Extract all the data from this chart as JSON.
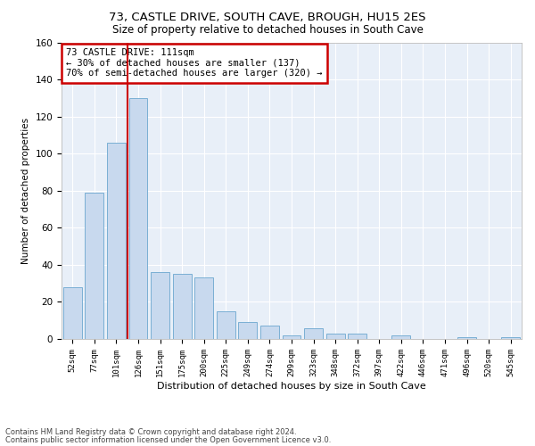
{
  "title1": "73, CASTLE DRIVE, SOUTH CAVE, BROUGH, HU15 2ES",
  "title2": "Size of property relative to detached houses in South Cave",
  "xlabel": "Distribution of detached houses by size in South Cave",
  "ylabel": "Number of detached properties",
  "categories": [
    "52sqm",
    "77sqm",
    "101sqm",
    "126sqm",
    "151sqm",
    "175sqm",
    "200sqm",
    "225sqm",
    "249sqm",
    "274sqm",
    "299sqm",
    "323sqm",
    "348sqm",
    "372sqm",
    "397sqm",
    "422sqm",
    "446sqm",
    "471sqm",
    "496sqm",
    "520sqm",
    "545sqm"
  ],
  "values": [
    28,
    79,
    106,
    130,
    36,
    35,
    33,
    15,
    9,
    7,
    2,
    6,
    3,
    3,
    0,
    2,
    0,
    0,
    1,
    0,
    1
  ],
  "bar_color": "#c8d9ee",
  "bar_edge_color": "#7aafd4",
  "vline_color": "#cc0000",
  "annotation_text": "73 CASTLE DRIVE: 111sqm\n← 30% of detached houses are smaller (137)\n70% of semi-detached houses are larger (320) →",
  "annotation_box_color": "#ffffff",
  "annotation_box_edge": "#cc0000",
  "ylim": [
    0,
    160
  ],
  "yticks": [
    0,
    20,
    40,
    60,
    80,
    100,
    120,
    140,
    160
  ],
  "footer1": "Contains HM Land Registry data © Crown copyright and database right 2024.",
  "footer2": "Contains public sector information licensed under the Open Government Licence v3.0.",
  "plot_bg_color": "#e8eff8",
  "grid_color": "#ffffff",
  "title1_fontsize": 9.5,
  "title2_fontsize": 8.5,
  "xlabel_fontsize": 8,
  "ylabel_fontsize": 7.5
}
